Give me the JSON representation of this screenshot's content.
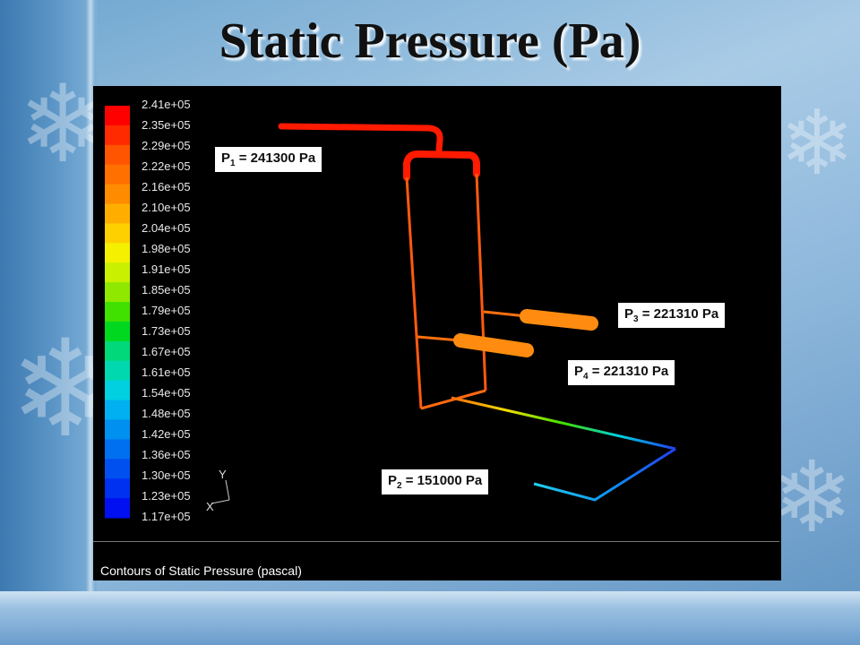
{
  "title": "Static Pressure (Pa)",
  "legend": {
    "labels": [
      "2.41e+05",
      "2.35e+05",
      "2.29e+05",
      "2.22e+05",
      "2.16e+05",
      "2.10e+05",
      "2.04e+05",
      "1.98e+05",
      "1.91e+05",
      "1.85e+05",
      "1.79e+05",
      "1.73e+05",
      "1.67e+05",
      "1.61e+05",
      "1.54e+05",
      "1.48e+05",
      "1.42e+05",
      "1.36e+05",
      "1.30e+05",
      "1.23e+05",
      "1.17e+05"
    ],
    "colors": [
      "#ff0000",
      "#ff2a00",
      "#ff5500",
      "#ff7000",
      "#ff8c00",
      "#ffae00",
      "#ffd000",
      "#f5f000",
      "#c8f000",
      "#8ee800",
      "#40e000",
      "#00d820",
      "#00d87a",
      "#00d8b0",
      "#00d0e0",
      "#00b0f0",
      "#0090f0",
      "#0070f0",
      "#0050f0",
      "#0030f0",
      "#0010f0"
    ]
  },
  "axes": {
    "y": "Y",
    "x": "X"
  },
  "labels": {
    "p1": {
      "name": "P",
      "sub": "1",
      "value": " = 241300 Pa"
    },
    "p2": {
      "name": "P",
      "sub": "2",
      "value": " = 151000 Pa"
    },
    "p3": {
      "name": "P",
      "sub": "3",
      "value": " = 221310 Pa"
    },
    "p4": {
      "name": "P",
      "sub": "4",
      "value": " = 221310 Pa"
    }
  },
  "caption": "Contours of Static Pressure (pascal)",
  "pipe_colors": {
    "high": "#ff1a00",
    "mid": "#ff6a10",
    "orange": "#ff8c10",
    "cyan": "#20d0f0",
    "blue": "#2040f0"
  }
}
